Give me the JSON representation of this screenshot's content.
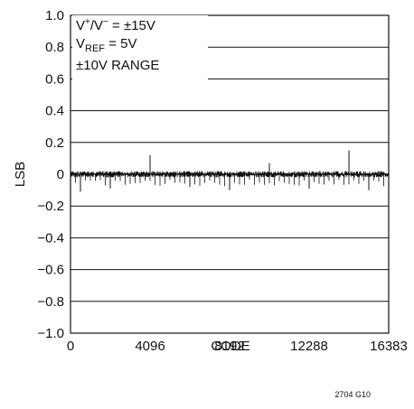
{
  "chart_data": {
    "type": "line",
    "title": "",
    "xlabel": "CODE",
    "ylabel": "LSB",
    "xlim": [
      0,
      16383
    ],
    "ylim": [
      -1.0,
      1.0
    ],
    "x_ticks": [
      0,
      4096,
      8192,
      12288,
      16383
    ],
    "x_tick_labels": [
      "0",
      "4096",
      "8192",
      "12288",
      "16383"
    ],
    "y_ticks": [
      1.0,
      0.8,
      0.6,
      0.4,
      0.2,
      0,
      -0.2,
      -0.4,
      -0.6,
      -0.8,
      -1.0
    ],
    "y_tick_labels": [
      "1.0",
      "0.8",
      "0.6",
      "0.4",
      "0.2",
      "0",
      "−0.2",
      "−0.4",
      "−0.6",
      "−0.8",
      "−1.0"
    ],
    "grid": "horizontal",
    "annotations": {
      "supply_main": "V",
      "supply_sup1": "+",
      "supply_slash": "/V",
      "supply_sup2": "−",
      "supply_value": " = ±15V",
      "vref_main": "V",
      "vref_sub": "REF",
      "vref_value": " = 5V",
      "range": "±10V RANGE"
    },
    "figure_id": "2704 G10",
    "noise_band": 0.02,
    "spikes_up": [
      {
        "x": 4096,
        "y": 0.12
      },
      {
        "x": 10240,
        "y": 0.07
      },
      {
        "x": 14336,
        "y": 0.15
      }
    ],
    "spikes_down": [
      {
        "x": 512,
        "y": -0.11
      },
      {
        "x": 2048,
        "y": -0.09
      },
      {
        "x": 6144,
        "y": -0.08
      },
      {
        "x": 8192,
        "y": -0.1
      },
      {
        "x": 12288,
        "y": -0.09
      },
      {
        "x": 15360,
        "y": -0.1
      }
    ],
    "color": "#111111"
  }
}
